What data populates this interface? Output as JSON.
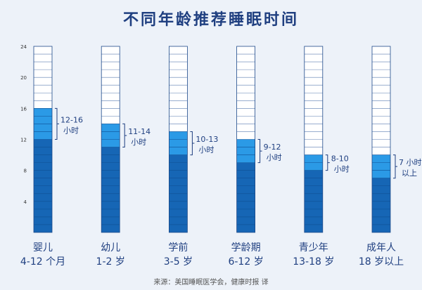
{
  "title": "不同年龄推荐睡眠时间",
  "source": "来源：美国睡眠医学会，健康时报 译",
  "colors": {
    "deep": "#1666b5",
    "light": "#2b9ae6",
    "empty": "#ffffff",
    "grid": "#1e4a8a",
    "text": "#1f3f80",
    "bracket": "#1f3f80"
  },
  "chart_data": {
    "type": "bar",
    "title": "不同年龄推荐睡眠时间",
    "ylim": [
      0,
      24
    ],
    "yticks": [
      4,
      8,
      12,
      16,
      20,
      24
    ],
    "unit": "小时",
    "bars": [
      {
        "category": "婴儿",
        "age": "4-12 个月",
        "min": 12,
        "max": 16,
        "label": [
          "12-16",
          "小时"
        ]
      },
      {
        "category": "幼儿",
        "age": "1-2 岁",
        "min": 11,
        "max": 14,
        "label": [
          "11-14",
          "小时"
        ]
      },
      {
        "category": "学前",
        "age": "3-5 岁",
        "min": 10,
        "max": 13,
        "label": [
          "10-13",
          "小时"
        ]
      },
      {
        "category": "学龄期",
        "age": "6-12 岁",
        "min": 9,
        "max": 12,
        "label": [
          "9-12",
          "小时"
        ]
      },
      {
        "category": "青少年",
        "age": "13-18 岁",
        "min": 8,
        "max": 10,
        "label": [
          "8-10",
          "小时"
        ]
      },
      {
        "category": "成年人",
        "age": "18 岁以上",
        "min": 7,
        "max": 10,
        "label": [
          "7 小时",
          "以上"
        ]
      }
    ]
  }
}
